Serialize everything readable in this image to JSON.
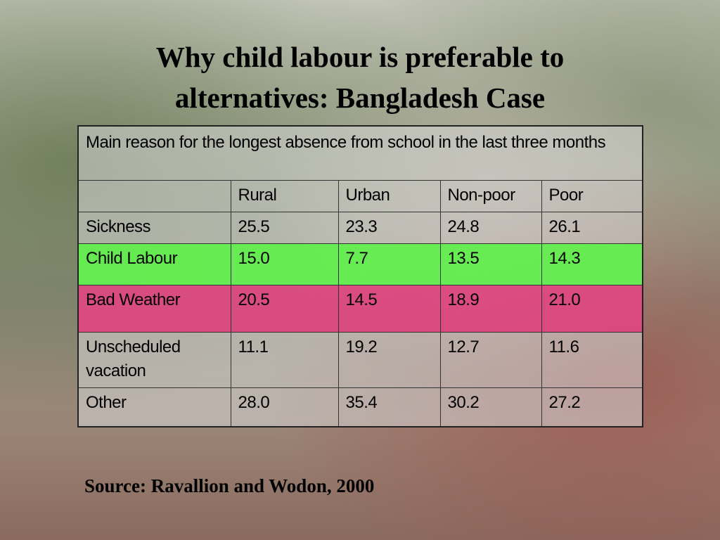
{
  "title": "Why child labour is preferable to alternatives: Bangladesh Case",
  "table": {
    "caption": "Main reason for the longest absence from school in the last three months",
    "columns": [
      "Rural",
      "Urban",
      "Non-poor",
      "Poor"
    ],
    "rows": [
      [
        "Sickness",
        "25.5",
        "23.3",
        "24.8",
        "26.1"
      ],
      [
        "Child Labour",
        "15.0",
        "7.7",
        "13.5",
        "14.3"
      ],
      [
        "Bad Weather",
        "20.5",
        "14.5",
        "18.9",
        "21.0"
      ],
      [
        "Unscheduled vacation",
        "11.1",
        "19.2",
        "12.7",
        "11.6"
      ],
      [
        "Other",
        "28.0",
        "35.4",
        "30.2",
        "27.2"
      ]
    ]
  },
  "source": "Source: Ravallion and Wodon, 2000"
}
